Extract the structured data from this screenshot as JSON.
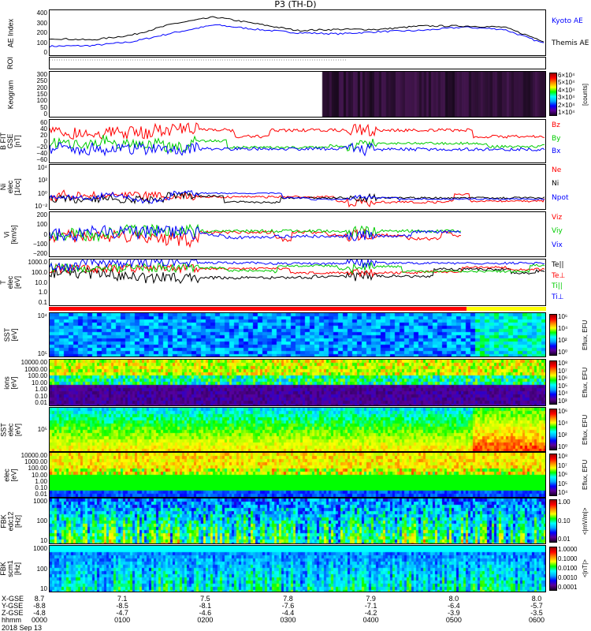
{
  "title": "P3 (TH-D)",
  "footer": {
    "row_labels": [
      "X-GSE",
      "Y-GSE",
      "Z-GSE",
      "hhmm"
    ],
    "date": "2018 Sep 13",
    "columns": [
      {
        "x": "8.7",
        "y": "-8.8",
        "z": "-4.8",
        "t": "0000"
      },
      {
        "x": "7.1",
        "y": "-8.5",
        "z": "-4.7",
        "t": "0100"
      },
      {
        "x": "7.5",
        "y": "-8.1",
        "z": "-4.6",
        "t": "0200"
      },
      {
        "x": "7.8",
        "y": "-7.6",
        "z": "-4.4",
        "t": "0300"
      },
      {
        "x": "7.9",
        "y": "-7.1",
        "z": "-4.2",
        "t": "0400"
      },
      {
        "x": "8.0",
        "y": "-6.4",
        "z": "-3.9",
        "t": "0500"
      },
      {
        "x": "8.0",
        "y": "-5.7",
        "z": "-3.5",
        "t": "0600"
      }
    ]
  },
  "colors": {
    "kyoto": "#0000ff",
    "themis": "#000000",
    "red": "#ff0000",
    "green": "#00ff00",
    "blue": "#0000ff"
  },
  "chart_data": [
    {
      "type": "line",
      "ylabel": "AE Index",
      "ylim": [
        0,
        400
      ],
      "ticks": [
        "400",
        "300",
        "200",
        "100",
        "0"
      ],
      "x_hours": [
        0,
        0.5,
        1,
        1.5,
        2,
        2.5,
        3,
        3.5,
        4,
        4.5,
        5,
        5.5,
        6
      ],
      "series": [
        {
          "name": "Kyoto AE",
          "values": [
            80,
            85,
            120,
            200,
            270,
            230,
            200,
            190,
            210,
            220,
            250,
            230,
            100
          ]
        },
        {
          "name": "Themis AE",
          "values": [
            150,
            135,
            180,
            280,
            340,
            280,
            220,
            230,
            230,
            260,
            260,
            250,
            120
          ]
        }
      ]
    },
    {
      "type": "line",
      "ylabel": "ROI",
      "ticks": []
    },
    {
      "type": "heatmap",
      "ylabel": "Keogram",
      "ticks": [
        "300",
        "250",
        "200",
        "150",
        "100",
        "50",
        "0"
      ],
      "colorbar": [
        "6×10⁴",
        "5×10⁴",
        "4×10⁴",
        "3×10⁴",
        "2×10⁴",
        "1×10⁴"
      ],
      "colorbar_title": "[counts]"
    },
    {
      "type": "line",
      "ylabel": "B FIT\nGSE\n[nT]",
      "ylim": [
        -60,
        60
      ],
      "ticks": [
        "60",
        "40",
        "20",
        "0",
        "−20",
        "−40",
        "−60"
      ],
      "legend": [
        "Bz",
        "By",
        "Bx"
      ]
    },
    {
      "type": "line",
      "ylabel": "Ni\nelec\n[1/cc]",
      "ticks": [
        "10⁴",
        "10²",
        "10⁰",
        "10⁻²"
      ],
      "legend": [
        "Ne",
        "Ni",
        "Npot"
      ]
    },
    {
      "type": "line",
      "ylabel": "Vi\n[km/s]",
      "ylim": [
        -300,
        300
      ],
      "ticks": [
        "200",
        "100",
        "0",
        "−100",
        "−200"
      ],
      "legend": [
        "Viz",
        "Viy",
        "Vix"
      ]
    },
    {
      "type": "line",
      "ylabel": "T\nelec\n[eV]",
      "ticks": [
        "1000.0",
        "100.0",
        "10.0",
        "1.0",
        "0.1"
      ],
      "legend": [
        "Te||",
        "Te⊥",
        "Ti||",
        "Ti⊥"
      ]
    },
    {
      "type": "heatmap",
      "ylabel": "SST\n[eV]",
      "ticks": [
        "10⁴",
        "10⁵"
      ],
      "colorbar": [
        "10⁶",
        "10⁴",
        "10²",
        "10⁰"
      ],
      "colorbar_title": "Eflux, EFU"
    },
    {
      "type": "heatmap",
      "ylabel": "ions\n[eV]",
      "ticks": [
        "10000.00",
        "1000.00",
        "100.00",
        "10.00",
        "1.00",
        "0.10",
        "0.01"
      ],
      "colorbar": [
        "10⁸",
        "10⁷",
        "10⁶",
        "10⁵",
        "10⁴",
        "10³"
      ],
      "colorbar_title": "Eflux, EFU"
    },
    {
      "type": "heatmap",
      "ylabel": "SST\nelec\n[eV]",
      "ticks": [
        "10⁵"
      ],
      "colorbar": [
        "10⁶",
        "10⁴",
        "10²",
        "10⁰"
      ],
      "colorbar_title": "Eflux, EFU"
    },
    {
      "type": "heatmap",
      "ylabel": "elec\n[eV]",
      "ticks": [
        "10000.00",
        "1000.00",
        "100.00",
        "10.00",
        "1.00",
        "0.10",
        "0.01"
      ],
      "colorbar": [
        "10⁸",
        "10⁷",
        "10⁶",
        "10⁵",
        "10⁴"
      ],
      "colorbar_title": "Eflux, EFU"
    },
    {
      "type": "heatmap",
      "ylabel": "FBK\nedc12\n[Hz]",
      "ticks": [
        "1000",
        "100",
        "10"
      ],
      "colorbar": [
        "1.00",
        "0.10",
        "0.01"
      ],
      "colorbar_title": "<|mV/m|>"
    },
    {
      "type": "heatmap",
      "ylabel": "FBK\nscm1\n[Hz]",
      "ticks": [
        "1000",
        "100",
        "10"
      ],
      "colorbar": [
        "1.0000",
        "0.1000",
        "0.0100",
        "0.0010",
        "0.0001"
      ],
      "colorbar_title": "<|nT|>"
    }
  ]
}
